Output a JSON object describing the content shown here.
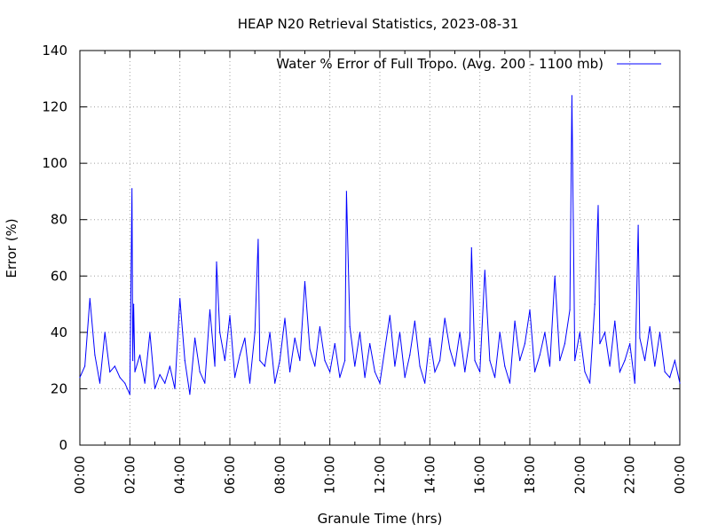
{
  "chart_data": {
    "type": "line",
    "title": "HEAP N20 Retrieval Statistics, 2023-08-31",
    "xlabel": "Granule Time (hrs)",
    "ylabel": "Error (%)",
    "xlim": [
      "00:00",
      "24:00"
    ],
    "ylim": [
      0,
      140
    ],
    "grid": true,
    "legend_position": "top-right",
    "x_ticks": [
      "00:00",
      "02:00",
      "04:00",
      "06:00",
      "08:00",
      "10:00",
      "12:00",
      "14:00",
      "16:00",
      "18:00",
      "20:00",
      "22:00",
      "00:00"
    ],
    "y_ticks": [
      "0",
      "20",
      "40",
      "60",
      "80",
      "100",
      "120",
      "140"
    ],
    "series": [
      {
        "name": "Water % Error of Full Tropo. (Avg. 200 - 1100 mb)",
        "color": "#0000ff",
        "x": [
          "00:00",
          "00:12",
          "00:24",
          "00:36",
          "00:48",
          "01:00",
          "01:12",
          "01:24",
          "01:36",
          "01:48",
          "02:00",
          "02:05",
          "02:07",
          "02:09",
          "02:12",
          "02:24",
          "02:36",
          "02:48",
          "03:00",
          "03:12",
          "03:24",
          "03:36",
          "03:48",
          "04:00",
          "04:12",
          "04:24",
          "04:36",
          "04:48",
          "05:00",
          "05:12",
          "05:24",
          "05:28",
          "05:36",
          "05:48",
          "06:00",
          "06:12",
          "06:24",
          "06:36",
          "06:48",
          "07:00",
          "07:08",
          "07:12",
          "07:24",
          "07:36",
          "07:48",
          "08:00",
          "08:12",
          "08:24",
          "08:36",
          "08:48",
          "09:00",
          "09:12",
          "09:24",
          "09:36",
          "09:48",
          "10:00",
          "10:12",
          "10:24",
          "10:36",
          "10:40",
          "10:48",
          "11:00",
          "11:12",
          "11:24",
          "11:36",
          "11:48",
          "12:00",
          "12:12",
          "12:24",
          "12:36",
          "12:48",
          "13:00",
          "13:12",
          "13:24",
          "13:36",
          "13:48",
          "14:00",
          "14:12",
          "14:24",
          "14:36",
          "14:48",
          "15:00",
          "15:12",
          "15:24",
          "15:36",
          "15:40",
          "15:48",
          "16:00",
          "16:12",
          "16:24",
          "16:36",
          "16:48",
          "17:00",
          "17:12",
          "17:24",
          "17:36",
          "17:48",
          "18:00",
          "18:12",
          "18:24",
          "18:36",
          "18:48",
          "19:00",
          "19:12",
          "19:24",
          "19:36",
          "19:41",
          "19:48",
          "20:00",
          "20:12",
          "20:24",
          "20:36",
          "20:44",
          "20:48",
          "21:00",
          "21:12",
          "21:24",
          "21:36",
          "21:48",
          "22:00",
          "22:12",
          "22:20",
          "22:24",
          "22:36",
          "22:48",
          "23:00",
          "23:12",
          "23:24",
          "23:36",
          "23:48",
          "24:00"
        ],
        "values": [
          24,
          28,
          52,
          32,
          22,
          40,
          26,
          28,
          24,
          22,
          18,
          91,
          30,
          50,
          26,
          32,
          22,
          40,
          20,
          25,
          22,
          28,
          20,
          52,
          30,
          18,
          38,
          26,
          22,
          48,
          28,
          65,
          40,
          30,
          46,
          24,
          32,
          38,
          22,
          40,
          73,
          30,
          28,
          40,
          22,
          30,
          45,
          26,
          38,
          30,
          58,
          34,
          28,
          42,
          30,
          26,
          36,
          24,
          30,
          90,
          42,
          28,
          40,
          24,
          36,
          26,
          22,
          34,
          46,
          28,
          40,
          24,
          32,
          44,
          28,
          22,
          38,
          26,
          30,
          45,
          34,
          28,
          40,
          26,
          38,
          70,
          30,
          26,
          62,
          30,
          24,
          40,
          28,
          22,
          44,
          30,
          36,
          48,
          26,
          32,
          40,
          28,
          60,
          30,
          36,
          48,
          124,
          30,
          40,
          26,
          22,
          50,
          85,
          36,
          40,
          28,
          44,
          26,
          30,
          36,
          22,
          78,
          38,
          30,
          42,
          28,
          40,
          26,
          24,
          30,
          22
        ]
      }
    ]
  }
}
